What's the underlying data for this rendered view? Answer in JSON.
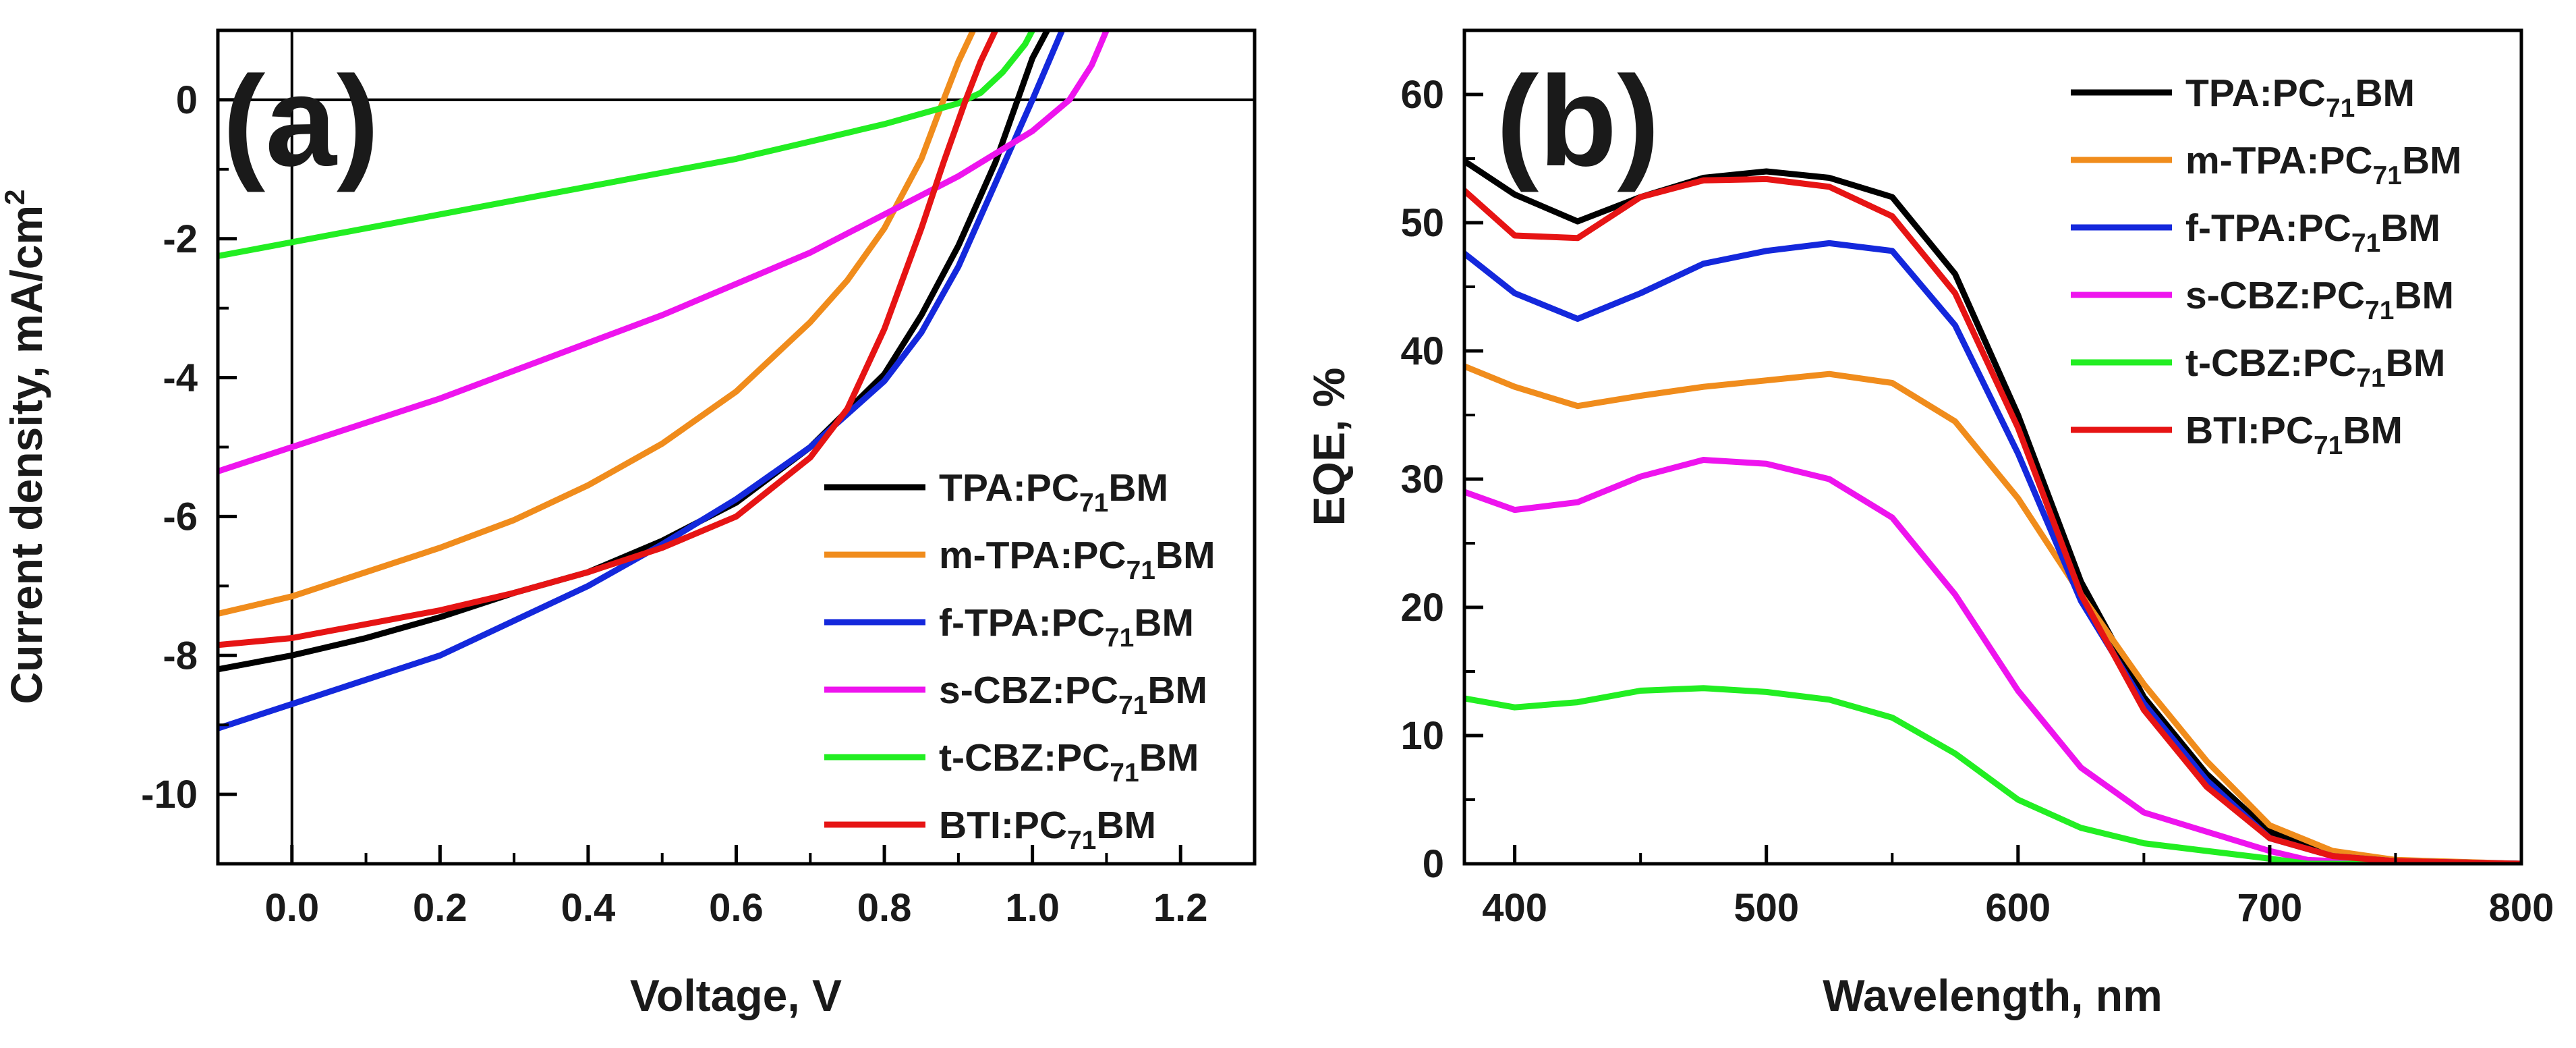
{
  "chart_data": [
    {
      "type": "line",
      "panel_label": "(a)",
      "xlabel": "Voltage, V",
      "ylabel": "Current density, mA/cm",
      "ylabel_sup": "2",
      "xlim": [
        -0.1,
        1.3
      ],
      "ylim": [
        -11,
        1
      ],
      "xticks": [
        0.0,
        0.2,
        0.4,
        0.6,
        0.8,
        1.0,
        1.2
      ],
      "xtick_labels": [
        "0.0",
        "0.2",
        "0.4",
        "0.6",
        "0.8",
        "1.0",
        "1.2"
      ],
      "yticks": [
        0,
        -2,
        -4,
        -6,
        -8,
        -10
      ],
      "ytick_labels": [
        "0",
        "-2",
        "-4",
        "-6",
        "-8",
        "-10"
      ],
      "legend_position": "bottom-right",
      "reference_lines": {
        "y": 0,
        "x": 0
      },
      "series": [
        {
          "name": "TPA:PC71BM",
          "label_main": "TPA:PC",
          "label_sub": "71",
          "label_tail": "BM",
          "color": "#000000",
          "x": [
            -0.1,
            0.0,
            0.1,
            0.2,
            0.3,
            0.4,
            0.5,
            0.6,
            0.7,
            0.8,
            0.85,
            0.9,
            0.95,
            0.98,
            1.0,
            1.02
          ],
          "y": [
            -8.2,
            -8.0,
            -7.75,
            -7.45,
            -7.1,
            -6.8,
            -6.35,
            -5.8,
            -5.0,
            -3.95,
            -3.1,
            -2.1,
            -0.9,
            0.0,
            0.6,
            1.0
          ]
        },
        {
          "name": "m-TPA:PC71BM",
          "label_main": "m-TPA:PC",
          "label_sub": "71",
          "label_tail": "BM",
          "color": "#f08c1c",
          "x": [
            -0.1,
            0.0,
            0.1,
            0.2,
            0.3,
            0.4,
            0.5,
            0.6,
            0.7,
            0.75,
            0.8,
            0.85,
            0.88,
            0.9,
            0.92
          ],
          "y": [
            -7.4,
            -7.15,
            -6.8,
            -6.45,
            -6.05,
            -5.55,
            -4.95,
            -4.2,
            -3.2,
            -2.6,
            -1.85,
            -0.85,
            0.0,
            0.55,
            1.0
          ]
        },
        {
          "name": "f-TPA:PC71BM",
          "label_main": "f-TPA:PC",
          "label_sub": "71",
          "label_tail": "BM",
          "color": "#1428dc",
          "x": [
            -0.1,
            0.0,
            0.1,
            0.2,
            0.3,
            0.4,
            0.5,
            0.6,
            0.7,
            0.8,
            0.85,
            0.9,
            0.95,
            1.0,
            1.02,
            1.04
          ],
          "y": [
            -9.05,
            -8.7,
            -8.35,
            -8.0,
            -7.5,
            -7.0,
            -6.4,
            -5.75,
            -5.0,
            -4.05,
            -3.35,
            -2.4,
            -1.2,
            0.0,
            0.5,
            1.0
          ]
        },
        {
          "name": "s-CBZ:PC71BM",
          "label_main": "s-CBZ:PC",
          "label_sub": "71",
          "label_tail": "BM",
          "color": "#ee14ee",
          "x": [
            -0.1,
            0.0,
            0.1,
            0.2,
            0.3,
            0.4,
            0.5,
            0.6,
            0.7,
            0.8,
            0.9,
            1.0,
            1.05,
            1.08,
            1.1
          ],
          "y": [
            -5.35,
            -5.0,
            -4.65,
            -4.3,
            -3.9,
            -3.5,
            -3.1,
            -2.65,
            -2.2,
            -1.65,
            -1.1,
            -0.45,
            0.0,
            0.5,
            1.0
          ]
        },
        {
          "name": "t-CBZ:PC71BM",
          "label_main": "t-CBZ:PC",
          "label_sub": "71",
          "label_tail": "BM",
          "color": "#22ee22",
          "x": [
            -0.1,
            0.0,
            0.1,
            0.2,
            0.3,
            0.4,
            0.5,
            0.6,
            0.7,
            0.8,
            0.85,
            0.9,
            0.93,
            0.96,
            0.99,
            1.0
          ],
          "y": [
            -2.25,
            -2.05,
            -1.85,
            -1.65,
            -1.45,
            -1.25,
            -1.05,
            -0.85,
            -0.6,
            -0.35,
            -0.2,
            -0.05,
            0.1,
            0.4,
            0.8,
            1.0
          ]
        },
        {
          "name": "BTI:PC71BM",
          "label_main": "BTI:PC",
          "label_sub": "71",
          "label_tail": "BM",
          "color": "#e61414",
          "x": [
            -0.1,
            0.0,
            0.1,
            0.2,
            0.3,
            0.4,
            0.5,
            0.6,
            0.7,
            0.75,
            0.8,
            0.85,
            0.88,
            0.91,
            0.93,
            0.95
          ],
          "y": [
            -7.85,
            -7.75,
            -7.55,
            -7.35,
            -7.1,
            -6.8,
            -6.45,
            -6.0,
            -5.15,
            -4.45,
            -3.3,
            -1.85,
            -0.9,
            0.0,
            0.55,
            1.0
          ]
        }
      ]
    },
    {
      "type": "line",
      "panel_label": "(b)",
      "xlabel": "Wavelength, nm",
      "ylabel": "EQE, %",
      "xlim": [
        380,
        800
      ],
      "ylim": [
        0,
        65
      ],
      "xticks": [
        400,
        500,
        600,
        700,
        800
      ],
      "xtick_labels": [
        "400",
        "500",
        "600",
        "700",
        "800"
      ],
      "yticks": [
        0,
        10,
        20,
        30,
        40,
        50,
        60
      ],
      "ytick_labels": [
        "0",
        "10",
        "20",
        "30",
        "40",
        "50",
        "60"
      ],
      "legend_position": "top-right",
      "series": [
        {
          "name": "TPA:PC71BM",
          "label_main": "TPA:PC",
          "label_sub": "71",
          "label_tail": "BM",
          "color": "#000000",
          "x": [
            380,
            400,
            425,
            450,
            475,
            500,
            525,
            550,
            575,
            600,
            625,
            650,
            675,
            700,
            725,
            750,
            800
          ],
          "y": [
            54.8,
            52.2,
            50.1,
            52.0,
            53.5,
            54.0,
            53.5,
            52.0,
            46.0,
            35.0,
            22.0,
            13.0,
            7.0,
            2.5,
            0.7,
            0.2,
            0.0
          ]
        },
        {
          "name": "m-TPA:PC71BM",
          "label_main": "m-TPA:PC",
          "label_sub": "71",
          "label_tail": "BM",
          "color": "#f08c1c",
          "x": [
            380,
            400,
            425,
            450,
            475,
            500,
            525,
            550,
            575,
            600,
            625,
            650,
            675,
            700,
            725,
            750,
            800
          ],
          "y": [
            38.8,
            37.2,
            35.7,
            36.5,
            37.2,
            37.7,
            38.2,
            37.5,
            34.5,
            28.5,
            21.0,
            14.0,
            8.0,
            3.0,
            1.0,
            0.3,
            0.0
          ]
        },
        {
          "name": "f-TPA:PC71BM",
          "label_main": "f-TPA:PC",
          "label_sub": "71",
          "label_tail": "BM",
          "color": "#1428dc",
          "x": [
            380,
            400,
            425,
            450,
            475,
            500,
            525,
            550,
            575,
            600,
            625,
            650,
            675,
            700,
            725,
            750,
            800
          ],
          "y": [
            47.6,
            44.5,
            42.5,
            44.5,
            46.8,
            47.8,
            48.4,
            47.8,
            42.0,
            32.0,
            20.5,
            12.5,
            6.5,
            2.0,
            0.6,
            0.2,
            0.0
          ]
        },
        {
          "name": "s-CBZ:PC71BM",
          "label_main": "s-CBZ:PC",
          "label_sub": "71",
          "label_tail": "BM",
          "color": "#ee14ee",
          "x": [
            380,
            400,
            425,
            450,
            475,
            500,
            525,
            550,
            575,
            600,
            625,
            650,
            675,
            700,
            715,
            750,
            800
          ],
          "y": [
            29.0,
            27.6,
            28.2,
            30.2,
            31.5,
            31.2,
            30.0,
            27.0,
            21.0,
            13.5,
            7.5,
            4.0,
            2.5,
            1.0,
            0.3,
            0.0,
            0.0
          ]
        },
        {
          "name": "t-CBZ:PC71BM",
          "label_main": "t-CBZ:PC",
          "label_sub": "71",
          "label_tail": "BM",
          "color": "#22ee22",
          "x": [
            380,
            400,
            425,
            450,
            475,
            500,
            525,
            550,
            575,
            600,
            625,
            650,
            675,
            700,
            715,
            750,
            800
          ],
          "y": [
            12.9,
            12.2,
            12.6,
            13.5,
            13.7,
            13.4,
            12.8,
            11.4,
            8.6,
            5.0,
            2.8,
            1.6,
            1.0,
            0.4,
            0.0,
            0.0,
            0.0
          ]
        },
        {
          "name": "BTI:PC71BM",
          "label_main": "BTI:PC",
          "label_sub": "71",
          "label_tail": "BM",
          "color": "#e61414",
          "x": [
            380,
            400,
            425,
            450,
            475,
            500,
            525,
            550,
            575,
            600,
            625,
            650,
            675,
            700,
            725,
            750,
            800
          ],
          "y": [
            52.5,
            49.0,
            48.8,
            52.0,
            53.3,
            53.4,
            52.8,
            50.5,
            44.5,
            34.0,
            21.0,
            12.0,
            6.0,
            2.0,
            0.6,
            0.2,
            0.0
          ]
        }
      ]
    }
  ]
}
